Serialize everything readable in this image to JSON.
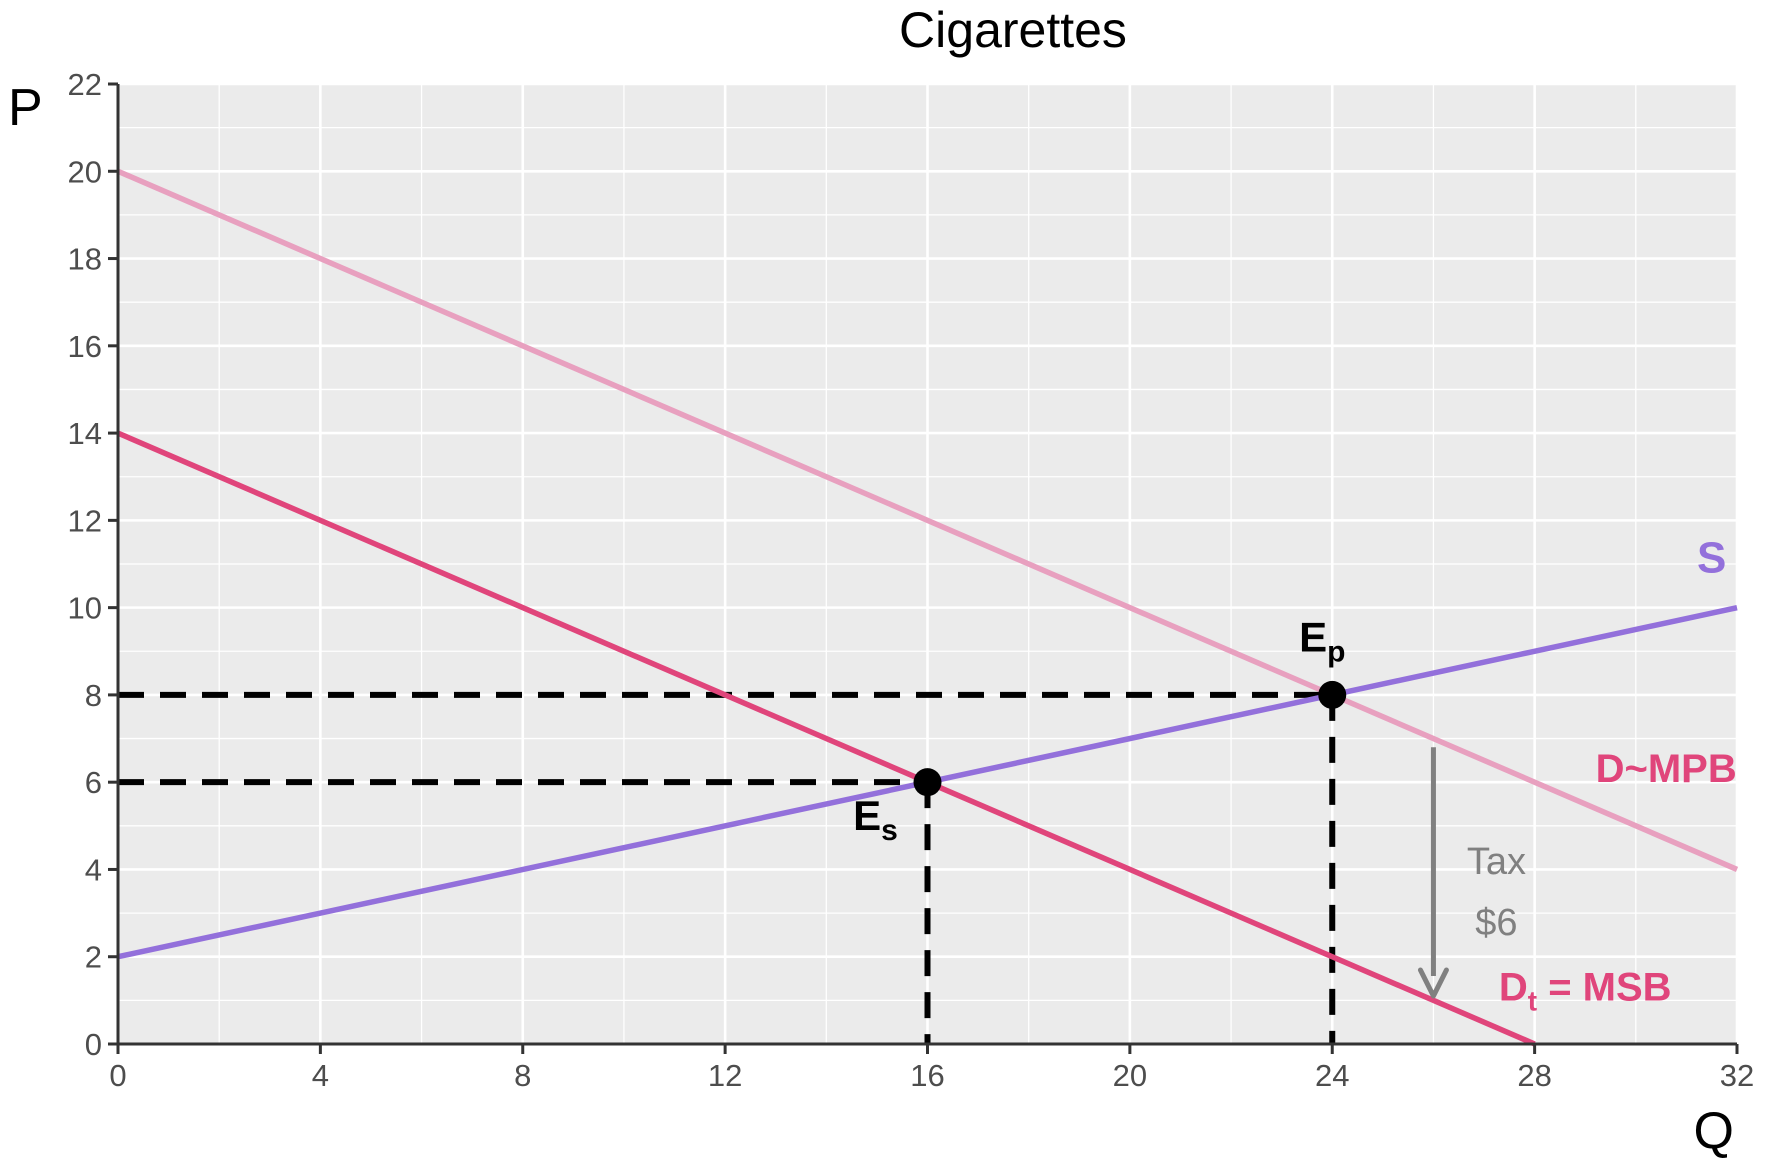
{
  "chart_data": {
    "type": "line",
    "title": "Cigarettes",
    "xlabel": "Q",
    "ylabel": "P",
    "xlim": [
      0,
      32
    ],
    "ylim": [
      0,
      22
    ],
    "x_ticks": [
      0,
      4,
      8,
      12,
      16,
      20,
      24,
      28,
      32
    ],
    "y_ticks": [
      0,
      2,
      4,
      6,
      8,
      10,
      12,
      14,
      16,
      18,
      20,
      22
    ],
    "grid": true,
    "series": [
      {
        "name": "S",
        "color": "#9370DB",
        "x": [
          0,
          32
        ],
        "y": [
          2,
          10
        ]
      },
      {
        "name": "D~MPB",
        "color": "#E8A0BF",
        "x": [
          0,
          32
        ],
        "y": [
          20,
          4
        ]
      },
      {
        "name": "MSB",
        "color": "#E0457B",
        "x": [
          0,
          28
        ],
        "y": [
          14,
          0
        ]
      }
    ],
    "curve_labels": {
      "supply": {
        "text": "S",
        "color": "#9370DB",
        "x": 31.5,
        "y": 10.8
      },
      "demand": {
        "text": "D~MPB",
        "color": "#E0457B",
        "x": 30.6,
        "y": 6.0
      },
      "social_main": {
        "text": "D",
        "sub": "t",
        "rest": "= MSB",
        "color": "#E0457B",
        "x": 29.0,
        "y": 1.0
      }
    },
    "points": [
      {
        "label": "E",
        "sub": "p",
        "x": 24,
        "y": 8
      },
      {
        "label": "E",
        "sub": "s",
        "x": 16,
        "y": 6
      }
    ],
    "dashed_guides": [
      {
        "from": [
          0,
          8
        ],
        "to": [
          24,
          8
        ]
      },
      {
        "from": [
          0,
          6
        ],
        "to": [
          16,
          6
        ]
      },
      {
        "from": [
          16,
          6
        ],
        "to": [
          16,
          0
        ]
      },
      {
        "from": [
          24,
          8
        ],
        "to": [
          24,
          0
        ]
      }
    ],
    "tax_arrow": {
      "x": 26,
      "y_from": 6.8,
      "y_to": 1.1,
      "color": "#808080"
    },
    "tax_text": [
      "Tax",
      "$6"
    ]
  }
}
